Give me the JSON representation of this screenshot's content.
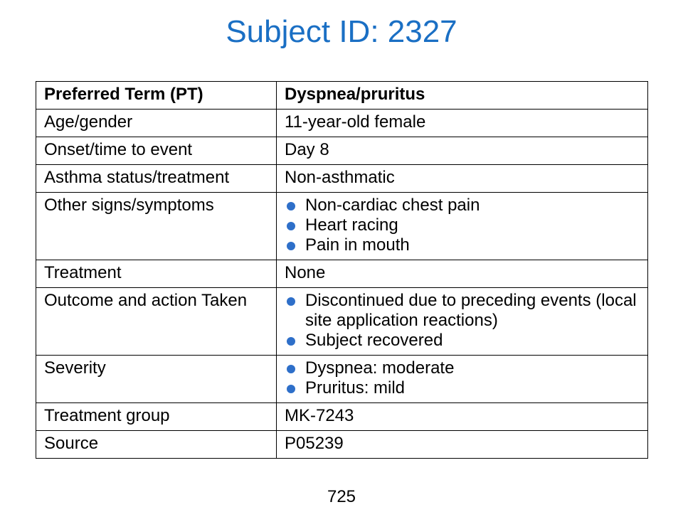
{
  "title": "Subject ID: 2327",
  "colors": {
    "title": "#1a6fc4",
    "bullet": "#2e6fc9"
  },
  "table": {
    "header": {
      "label": "Preferred Term (PT)",
      "value": "Dyspnea/pruritus"
    },
    "rows": [
      {
        "label": "Age/gender",
        "value": "11-year-old female"
      },
      {
        "label": "Onset/time to event",
        "value": "Day 8"
      },
      {
        "label": "Asthma status/treatment",
        "value": "Non-asthmatic"
      },
      {
        "label": "Other signs/symptoms",
        "bullets": [
          "Non-cardiac chest pain",
          "Heart racing",
          "Pain in mouth"
        ]
      },
      {
        "label": "Treatment",
        "value": "None"
      },
      {
        "label": "Outcome and action Taken",
        "bullets": [
          "Discontinued due to preceding events (local site application reactions)",
          "Subject recovered"
        ]
      },
      {
        "label": "Severity",
        "bullets": [
          "Dyspnea: moderate",
          "Pruritus: mild"
        ]
      },
      {
        "label": "Treatment group",
        "value": "MK-7243"
      },
      {
        "label": "Source",
        "value": "P05239"
      }
    ]
  },
  "page_number": "725"
}
